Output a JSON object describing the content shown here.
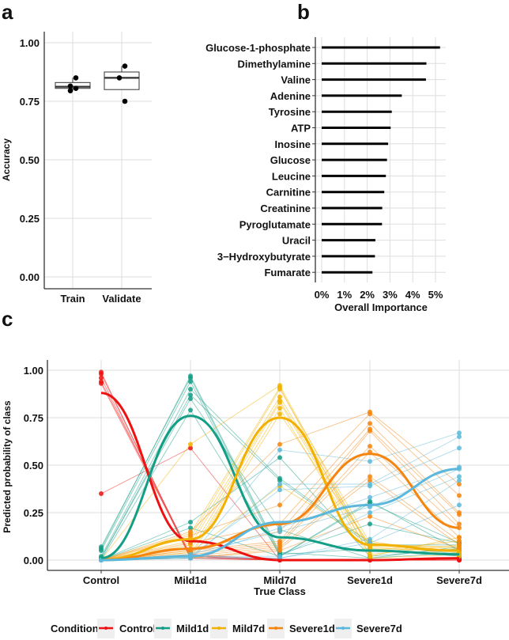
{
  "chart_data": [
    {
      "panel": "a",
      "type": "box",
      "ylabel": "Accuracy",
      "categories": [
        "Train",
        "Validate"
      ],
      "yticks": [
        "0.00",
        "0.25",
        "0.50",
        "0.75",
        "1.00"
      ],
      "ylim": [
        0,
        1.0
      ],
      "grid": true,
      "boxes": [
        {
          "category": "Train",
          "q1": 0.805,
          "median": 0.812,
          "q3": 0.83,
          "whisker_low": 0.795,
          "whisker_high": 0.85,
          "points": [
            0.85,
            0.815,
            0.805,
            0.795
          ]
        },
        {
          "category": "Validate",
          "q1": 0.8,
          "median": 0.85,
          "q3": 0.875,
          "whisker_low": 0.8,
          "whisker_high": 0.9,
          "points": [
            0.9,
            0.85,
            0.75
          ]
        }
      ]
    },
    {
      "panel": "b",
      "type": "bar",
      "orientation": "horizontal",
      "xlabel": "Overall Importance",
      "xticks": [
        "0%",
        "1%",
        "2%",
        "3%",
        "4%",
        "5%"
      ],
      "xlim": [
        0,
        5.3
      ],
      "grid": true,
      "categories": [
        "Glucose-1-phosphate",
        "Dimethylamine",
        "Valine",
        "Adenine",
        "Tyrosine",
        "ATP",
        "Inosine",
        "Glucose",
        "Leucine",
        "Carnitine",
        "Creatinine",
        "Pyroglutamate",
        "Uracil",
        "3−Hydroxybutyrate",
        "Fumarate"
      ],
      "values": [
        5.2,
        4.6,
        4.58,
        3.52,
        3.08,
        3.03,
        2.92,
        2.87,
        2.82,
        2.75,
        2.66,
        2.65,
        2.36,
        2.34,
        2.23
      ]
    },
    {
      "panel": "c",
      "type": "line",
      "xlabel": "True Class",
      "ylabel": "Predicted probability of class",
      "categories": [
        "Control",
        "Mild1d",
        "Mild7d",
        "Severe1d",
        "Severe7d"
      ],
      "yticks": [
        "0.00",
        "0.25",
        "0.50",
        "0.75",
        "1.00"
      ],
      "ylim": [
        0,
        1.0
      ],
      "grid": true,
      "legend": {
        "title": "Condition",
        "placement": "bottom"
      },
      "series": [
        {
          "name": "Control",
          "color": "#ee1111",
          "smooth": [
            0.88,
            0.1,
            0.0,
            0.0,
            0.01
          ],
          "samples": [
            [
              0.99,
              0.01,
              0,
              0,
              0
            ],
            [
              0.98,
              0.02,
              0,
              0,
              0
            ],
            [
              0.96,
              0.01,
              0,
              0,
              0.01
            ],
            [
              0.94,
              0.03,
              0,
              0,
              0
            ],
            [
              0.93,
              0.02,
              0,
              0,
              0.01
            ],
            [
              0.35,
              0.59,
              0,
              0,
              0.01
            ]
          ]
        },
        {
          "name": "Mild1d",
          "color": "#139e86",
          "smooth": [
            0.01,
            0.76,
            0.12,
            0.05,
            0.03
          ],
          "samples": [
            [
              0.06,
              0.97,
              0.04,
              0.01,
              0.07
            ],
            [
              0.07,
              0.96,
              0.03,
              0.19,
              0.09
            ],
            [
              0.05,
              0.94,
              0.02,
              0.31,
              0.05
            ],
            [
              0.02,
              0.9,
              0.43,
              0.09,
              0.03
            ],
            [
              0.01,
              0.87,
              0.42,
              0.08,
              0.08
            ],
            [
              0.01,
              0.85,
              0.16,
              0.01,
              0.04
            ],
            [
              0,
              0.79,
              0.03,
              0.06,
              0.02
            ],
            [
              0,
              0.2,
              0.54,
              0.02,
              0.06
            ],
            [
              0,
              0.17,
              0.02,
              0.3,
              0.09
            ]
          ]
        },
        {
          "name": "Mild7d",
          "color": "#f2b100",
          "smooth": [
            0.0,
            0.11,
            0.75,
            0.08,
            0.05
          ],
          "samples": [
            [
              0,
              0.61,
              0.92,
              0.05,
              0.1
            ],
            [
              0,
              0.14,
              0.91,
              0.02,
              0.12
            ],
            [
              0,
              0.12,
              0.9,
              0.09,
              0.06
            ],
            [
              0,
              0.1,
              0.86,
              0.07,
              0.04
            ],
            [
              0,
              0.08,
              0.84,
              0.06,
              0.05
            ],
            [
              0,
              0.05,
              0.83,
              0.03,
              0.08
            ],
            [
              0,
              0.03,
              0.8,
              0.01,
              0.03
            ],
            [
              0,
              0.02,
              0.77,
              0.08,
              0.07
            ],
            [
              0,
              0.04,
              0.39,
              0.1,
              0.02
            ]
          ]
        },
        {
          "name": "Severe1d",
          "color": "#f5850f",
          "smooth": [
            0.0,
            0.06,
            0.19,
            0.56,
            0.17
          ],
          "samples": [
            [
              0,
              0.15,
              0.61,
              0.78,
              0.4
            ],
            [
              0,
              0.13,
              0.29,
              0.77,
              0.34
            ],
            [
              0,
              0.09,
              0.19,
              0.72,
              0.25
            ],
            [
              0,
              0.06,
              0.15,
              0.69,
              0.24
            ],
            [
              0,
              0.05,
              0.1,
              0.68,
              0.19
            ],
            [
              0,
              0.04,
              0.09,
              0.6,
              0.17
            ],
            [
              0,
              0.03,
              0.08,
              0.57,
              0.12
            ],
            [
              0,
              0.02,
              0.07,
              0.44,
              0.1
            ],
            [
              0,
              0.01,
              0.06,
              0.42,
              0.08
            ],
            [
              0,
              0.01,
              0.05,
              0.23,
              0.06
            ]
          ]
        },
        {
          "name": "Severe7d",
          "color": "#5bb8dc",
          "smooth": [
            0.0,
            0.02,
            0.2,
            0.29,
            0.48
          ],
          "samples": [
            [
              0,
              0.02,
              0.58,
              0.52,
              0.67
            ],
            [
              0,
              0.01,
              0.4,
              0.4,
              0.65
            ],
            [
              0,
              0.02,
              0.37,
              0.39,
              0.59
            ],
            [
              0,
              0.01,
              0.17,
              0.33,
              0.49
            ],
            [
              0,
              0.03,
              0.15,
              0.28,
              0.48
            ],
            [
              0,
              0.02,
              0.02,
              0.25,
              0.44
            ],
            [
              0,
              0.01,
              0.01,
              0.11,
              0.42
            ],
            [
              0,
              0.02,
              0.01,
              0.09,
              0.29
            ]
          ]
        }
      ]
    }
  ],
  "panel_labels": [
    "a",
    "b",
    "c"
  ]
}
